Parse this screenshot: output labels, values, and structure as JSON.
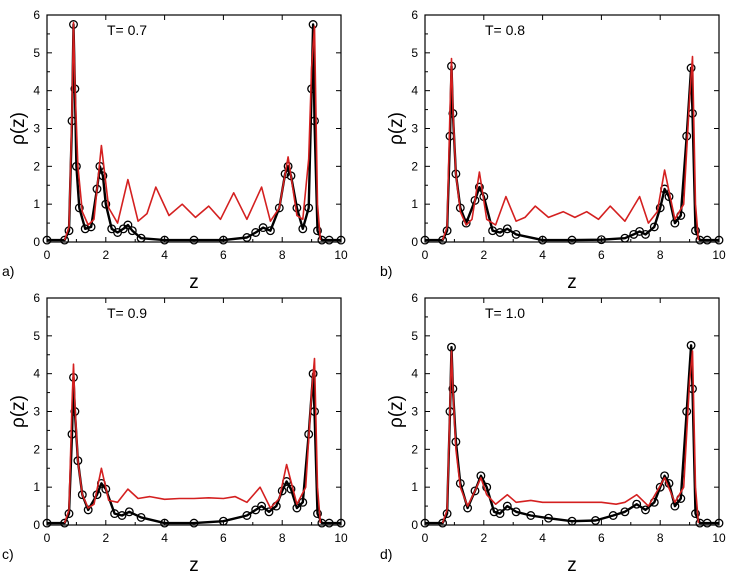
{
  "chart_data": [
    {
      "type": "line",
      "panel": "a)",
      "annotation": "T= 0.7",
      "xlabel": "z",
      "ylabel": "ρ(z)",
      "xlim": [
        0,
        10
      ],
      "ylim": [
        0,
        6
      ],
      "xticks": [
        "0",
        "2",
        "4",
        "6",
        "8",
        "10"
      ],
      "yticks": [
        "0",
        "1",
        "2",
        "3",
        "4",
        "5",
        "6"
      ],
      "grid": false,
      "series": [
        {
          "style": "black line with open circles",
          "color": "#000000",
          "x": [
            0.0,
            0.6,
            0.75,
            0.85,
            0.9,
            0.95,
            1.0,
            1.1,
            1.3,
            1.5,
            1.7,
            1.8,
            1.9,
            2.0,
            2.2,
            2.4,
            2.6,
            2.75,
            2.9,
            3.2,
            4.0,
            5.0,
            6.0,
            6.8,
            7.1,
            7.35,
            7.6,
            7.9,
            8.1,
            8.2,
            8.3,
            8.5,
            8.7,
            8.9,
            9.0,
            9.05,
            9.1,
            9.2,
            9.35,
            9.6,
            10.0
          ],
          "y": [
            0.05,
            0.05,
            0.3,
            3.2,
            5.75,
            4.05,
            2.0,
            0.9,
            0.35,
            0.4,
            1.4,
            2.0,
            1.75,
            1.0,
            0.35,
            0.25,
            0.35,
            0.45,
            0.3,
            0.1,
            0.05,
            0.05,
            0.05,
            0.12,
            0.25,
            0.38,
            0.3,
            0.9,
            1.8,
            2.0,
            1.75,
            0.9,
            0.35,
            0.9,
            4.05,
            5.75,
            3.2,
            0.3,
            0.05,
            0.05,
            0.05
          ]
        },
        {
          "style": "red line",
          "color": "#d42020",
          "x": [
            0.6,
            0.75,
            0.85,
            0.9,
            0.95,
            1.05,
            1.2,
            1.4,
            1.6,
            1.85,
            2.1,
            2.4,
            2.75,
            3.1,
            3.4,
            3.7,
            4.15,
            4.6,
            5.05,
            5.5,
            5.9,
            6.35,
            6.8,
            7.3,
            7.6,
            7.9,
            8.2,
            8.5,
            8.7,
            8.9,
            9.0,
            9.1,
            9.2,
            9.3
          ],
          "y": [
            0.05,
            0.4,
            3.5,
            5.8,
            4.2,
            2.0,
            0.8,
            0.45,
            0.6,
            2.55,
            0.9,
            0.5,
            1.65,
            0.55,
            0.75,
            1.45,
            0.7,
            1.0,
            0.65,
            0.95,
            0.6,
            1.3,
            0.6,
            1.45,
            0.55,
            0.9,
            2.25,
            0.7,
            0.6,
            2.2,
            4.6,
            5.7,
            1.0,
            0.05
          ]
        }
      ]
    },
    {
      "type": "line",
      "panel": "b)",
      "annotation": "T= 0.8",
      "xlabel": "z",
      "ylabel": "ρ(z)",
      "xlim": [
        0,
        10
      ],
      "ylim": [
        0,
        6
      ],
      "xticks": [
        "0",
        "2",
        "4",
        "6",
        "8",
        "10"
      ],
      "yticks": [
        "0",
        "1",
        "2",
        "3",
        "4",
        "5",
        "6"
      ],
      "grid": false,
      "series": [
        {
          "style": "black line with open circles",
          "color": "#000000",
          "x": [
            0.0,
            0.6,
            0.75,
            0.85,
            0.9,
            0.95,
            1.05,
            1.2,
            1.4,
            1.7,
            1.85,
            2.0,
            2.3,
            2.55,
            2.8,
            3.1,
            4.0,
            5.0,
            6.0,
            6.8,
            7.1,
            7.3,
            7.5,
            7.8,
            8.0,
            8.15,
            8.3,
            8.5,
            8.7,
            8.9,
            9.05,
            9.1,
            9.2,
            9.35,
            9.6,
            10.0
          ],
          "y": [
            0.05,
            0.05,
            0.3,
            2.8,
            4.65,
            3.4,
            1.8,
            0.9,
            0.5,
            1.1,
            1.45,
            1.2,
            0.3,
            0.25,
            0.35,
            0.2,
            0.05,
            0.05,
            0.06,
            0.1,
            0.2,
            0.28,
            0.2,
            0.4,
            0.9,
            1.4,
            1.2,
            0.5,
            0.7,
            2.8,
            4.6,
            3.4,
            0.3,
            0.05,
            0.05,
            0.05
          ]
        },
        {
          "style": "red line",
          "color": "#d42020",
          "x": [
            0.6,
            0.75,
            0.85,
            0.9,
            0.95,
            1.05,
            1.2,
            1.4,
            1.6,
            1.85,
            2.1,
            2.4,
            2.75,
            3.1,
            3.4,
            3.75,
            4.2,
            4.7,
            5.1,
            5.5,
            5.9,
            6.3,
            6.8,
            7.3,
            7.6,
            7.9,
            8.15,
            8.5,
            8.8,
            9.0,
            9.1,
            9.2,
            9.3
          ],
          "y": [
            0.05,
            0.4,
            3.5,
            4.85,
            3.5,
            1.8,
            0.8,
            0.45,
            0.6,
            1.85,
            0.6,
            0.45,
            1.2,
            0.55,
            0.65,
            0.95,
            0.65,
            0.8,
            0.65,
            0.8,
            0.6,
            0.95,
            0.55,
            1.2,
            0.5,
            0.8,
            1.9,
            0.6,
            1.0,
            3.8,
            4.9,
            1.0,
            0.05
          ]
        }
      ]
    },
    {
      "type": "line",
      "panel": "c)",
      "annotation": "T= 0.9",
      "xlabel": "z",
      "ylabel": "ρ(z)",
      "xlim": [
        0,
        10
      ],
      "ylim": [
        0,
        6
      ],
      "xticks": [
        "0",
        "2",
        "4",
        "6",
        "8",
        "10"
      ],
      "yticks": [
        "0",
        "1",
        "2",
        "3",
        "4",
        "5",
        "6"
      ],
      "grid": false,
      "series": [
        {
          "style": "black line with open circles",
          "color": "#000000",
          "x": [
            0.0,
            0.6,
            0.75,
            0.85,
            0.9,
            0.95,
            1.05,
            1.2,
            1.4,
            1.7,
            1.85,
            2.0,
            2.3,
            2.55,
            2.8,
            3.2,
            4.0,
            5.0,
            6.0,
            6.8,
            7.1,
            7.3,
            7.55,
            7.8,
            8.0,
            8.15,
            8.3,
            8.5,
            8.7,
            8.9,
            9.05,
            9.1,
            9.2,
            9.35,
            9.6,
            10.0
          ],
          "y": [
            0.05,
            0.05,
            0.3,
            2.4,
            3.9,
            3.0,
            1.7,
            0.8,
            0.4,
            0.8,
            1.1,
            0.95,
            0.3,
            0.25,
            0.35,
            0.2,
            0.05,
            0.05,
            0.1,
            0.25,
            0.4,
            0.5,
            0.35,
            0.5,
            0.9,
            1.15,
            0.95,
            0.45,
            0.6,
            2.4,
            4.0,
            3.0,
            0.3,
            0.05,
            0.05,
            0.05
          ]
        },
        {
          "style": "red line",
          "color": "#d42020",
          "x": [
            0.6,
            0.75,
            0.85,
            0.9,
            0.95,
            1.05,
            1.2,
            1.4,
            1.6,
            1.85,
            2.1,
            2.4,
            2.75,
            3.1,
            3.5,
            4.0,
            4.5,
            5.0,
            5.5,
            6.0,
            6.4,
            6.8,
            7.25,
            7.6,
            7.9,
            8.15,
            8.5,
            8.8,
            9.0,
            9.1,
            9.2,
            9.3
          ],
          "y": [
            0.05,
            0.4,
            3.2,
            4.25,
            3.2,
            1.7,
            0.8,
            0.45,
            0.55,
            1.5,
            0.65,
            0.6,
            0.95,
            0.7,
            0.75,
            0.68,
            0.7,
            0.7,
            0.72,
            0.7,
            0.75,
            0.6,
            1.0,
            0.45,
            0.7,
            1.6,
            0.55,
            1.0,
            3.5,
            4.4,
            1.0,
            0.05
          ]
        }
      ]
    },
    {
      "type": "line",
      "panel": "d)",
      "annotation": "T= 1.0",
      "xlabel": "z",
      "ylabel": "ρ(z)",
      "xlim": [
        0,
        10
      ],
      "ylim": [
        0,
        6
      ],
      "xticks": [
        "0",
        "2",
        "4",
        "6",
        "8",
        "10"
      ],
      "yticks": [
        "0",
        "1",
        "2",
        "3",
        "4",
        "5",
        "6"
      ],
      "grid": false,
      "series": [
        {
          "style": "black line with open circles",
          "color": "#000000",
          "x": [
            0.0,
            0.6,
            0.75,
            0.85,
            0.9,
            0.95,
            1.05,
            1.2,
            1.45,
            1.7,
            1.9,
            2.1,
            2.35,
            2.55,
            2.8,
            3.1,
            3.6,
            4.2,
            5.0,
            5.8,
            6.4,
            6.8,
            7.2,
            7.5,
            7.8,
            8.0,
            8.15,
            8.3,
            8.5,
            8.7,
            8.9,
            9.05,
            9.1,
            9.2,
            9.35,
            9.6,
            10.0
          ],
          "y": [
            0.05,
            0.05,
            0.3,
            3.0,
            4.7,
            3.6,
            2.2,
            1.1,
            0.45,
            0.9,
            1.3,
            1.0,
            0.35,
            0.3,
            0.5,
            0.35,
            0.25,
            0.18,
            0.1,
            0.12,
            0.25,
            0.35,
            0.55,
            0.4,
            0.6,
            1.0,
            1.3,
            1.1,
            0.5,
            0.7,
            3.0,
            4.75,
            3.6,
            0.3,
            0.05,
            0.05,
            0.05
          ]
        },
        {
          "style": "red line",
          "color": "#d42020",
          "x": [
            0.6,
            0.75,
            0.85,
            0.9,
            0.95,
            1.05,
            1.2,
            1.45,
            1.7,
            1.9,
            2.1,
            2.4,
            2.8,
            3.1,
            3.6,
            4.0,
            5.0,
            6.0,
            6.5,
            6.8,
            7.2,
            7.6,
            7.9,
            8.15,
            8.5,
            8.8,
            9.0,
            9.1,
            9.2,
            9.3
          ],
          "y": [
            0.05,
            0.4,
            3.2,
            4.6,
            3.6,
            2.0,
            1.0,
            0.5,
            0.9,
            1.25,
            0.8,
            0.55,
            0.8,
            0.6,
            0.65,
            0.6,
            0.6,
            0.6,
            0.55,
            0.6,
            0.8,
            0.5,
            0.9,
            1.25,
            0.6,
            1.0,
            3.8,
            4.6,
            1.0,
            0.05
          ]
        }
      ]
    }
  ]
}
